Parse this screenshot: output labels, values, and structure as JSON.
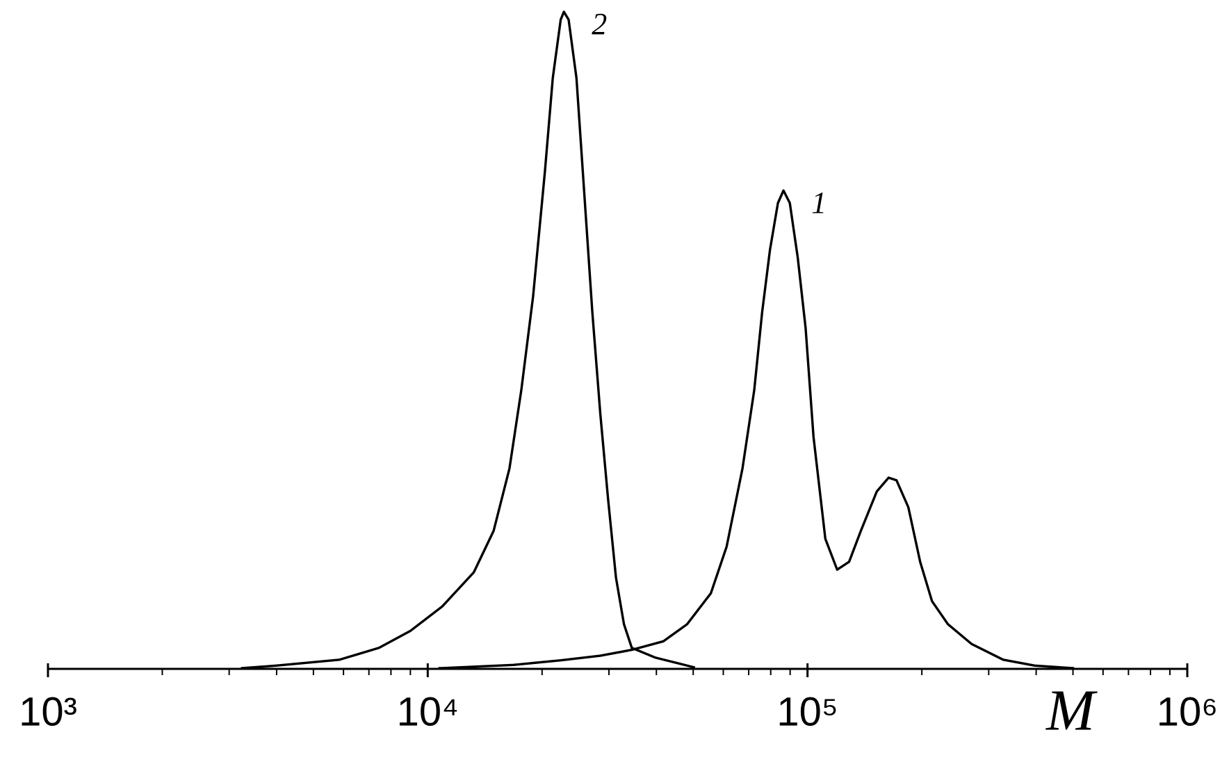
{
  "chart_data": {
    "type": "line",
    "x_label": "M",
    "log_x": true,
    "xlim": [
      1000,
      1000000
    ],
    "xticks": [
      {
        "value": 1000,
        "label": "10³"
      },
      {
        "value": 10000,
        "label": "10⁴"
      },
      {
        "value": 100000,
        "label": "10⁵"
      },
      {
        "value": 1000000,
        "label": "10⁶"
      }
    ],
    "minor_xticks": [
      2000,
      3000,
      4000,
      5000,
      6000,
      7000,
      8000,
      9000,
      20000,
      30000,
      40000,
      50000,
      60000,
      70000,
      80000,
      90000,
      200000,
      300000,
      400000,
      500000,
      600000,
      700000,
      800000,
      900000
    ],
    "ylim": [
      0,
      1
    ],
    "series": [
      {
        "name": "1",
        "color": "#000000",
        "x": [
          10660,
          16800,
          22390,
          28470,
          34460,
          41750,
          48190,
          55640,
          61240,
          67400,
          72400,
          75940,
          79660,
          83580,
          86450,
          89820,
          94240,
          98860,
          103700,
          111400,
          119700,
          128700,
          138200,
          152200,
          163500,
          171500,
          184300,
          198000,
          212800,
          234200,
          270300,
          327400,
          396600,
          503800
        ],
        "values": [
          0.001,
          0.006,
          0.013,
          0.02,
          0.029,
          0.042,
          0.068,
          0.115,
          0.186,
          0.305,
          0.424,
          0.543,
          0.638,
          0.709,
          0.728,
          0.709,
          0.626,
          0.519,
          0.353,
          0.198,
          0.151,
          0.163,
          0.21,
          0.27,
          0.291,
          0.287,
          0.246,
          0.163,
          0.103,
          0.068,
          0.038,
          0.014,
          0.005,
          0.001
        ]
      },
      {
        "name": "2",
        "color": "#000000",
        "x": [
          3220,
          3990,
          5860,
          7440,
          9010,
          10920,
          13220,
          14910,
          16410,
          17630,
          18940,
          20350,
          21340,
          22390,
          22830,
          23490,
          24640,
          25850,
          27130,
          28470,
          29850,
          31310,
          32860,
          34460,
          39800,
          45940,
          50560
        ],
        "values": [
          0.001,
          0.005,
          0.014,
          0.032,
          0.058,
          0.095,
          0.147,
          0.21,
          0.305,
          0.424,
          0.567,
          0.757,
          0.899,
          0.988,
          1.0,
          0.988,
          0.899,
          0.721,
          0.543,
          0.388,
          0.258,
          0.139,
          0.068,
          0.032,
          0.017,
          0.008,
          0.002
        ]
      }
    ]
  }
}
